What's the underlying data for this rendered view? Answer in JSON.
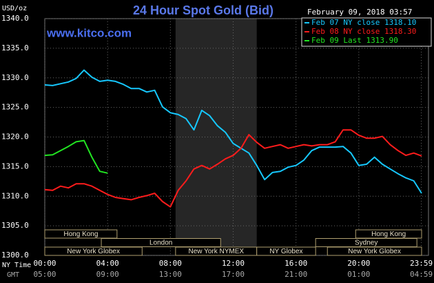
{
  "chart_data": {
    "type": "line",
    "title": "24 Hour Spot Gold (Bid)",
    "subtitle": "February 09, 2018 03:57",
    "y_label": "USD/oz",
    "watermark": "www.kitco.com",
    "x_axis_labels": [
      "NY Time",
      "GMT"
    ],
    "x": [
      0,
      0.5,
      1,
      1.5,
      2,
      2.5,
      3,
      3.5,
      4,
      4.5,
      5,
      5.5,
      6,
      6.5,
      7,
      7.5,
      8,
      8.5,
      9,
      9.5,
      10,
      10.5,
      11,
      11.5,
      12,
      12.5,
      13,
      13.5,
      14,
      14.5,
      15,
      15.5,
      16,
      16.5,
      17,
      17.5,
      18,
      18.5,
      19,
      19.5,
      20,
      20.5,
      21,
      21.5,
      22,
      22.5,
      23,
      23.5,
      24
    ],
    "series": [
      {
        "name": "Feb 07 NY close 1318.10",
        "color": "#16c8ff",
        "values": [
          1328.8,
          1328.7,
          1329.0,
          1329.3,
          1329.9,
          1331.3,
          1330.1,
          1329.4,
          1329.6,
          1329.4,
          1328.9,
          1328.2,
          1328.2,
          1327.6,
          1327.9,
          1325.1,
          1324.1,
          1323.8,
          1323.1,
          1321.2,
          1324.5,
          1323.6,
          1321.9,
          1320.8,
          1318.9,
          1318.1,
          1317.3,
          1315.2,
          1312.8,
          1314.0,
          1314.2,
          1314.9,
          1315.2,
          1316.1,
          1317.7,
          1318.3,
          1318.3,
          1318.3,
          1318.4,
          1317.3,
          1315.2,
          1315.4,
          1316.6,
          1315.4,
          1314.6,
          1313.8,
          1313.1,
          1312.6,
          1310.5
        ]
      },
      {
        "name": "Feb 08 NY close 1318.30",
        "color": "#ff1c1c",
        "values": [
          1311.1,
          1311.0,
          1311.7,
          1311.4,
          1312.1,
          1312.1,
          1311.7,
          1311.0,
          1310.3,
          1309.8,
          1309.6,
          1309.4,
          1309.8,
          1310.1,
          1310.5,
          1309.1,
          1308.2,
          1311.0,
          1312.6,
          1314.6,
          1315.2,
          1314.6,
          1315.4,
          1316.3,
          1316.9,
          1318.1,
          1320.4,
          1319.1,
          1318.1,
          1318.4,
          1318.7,
          1318.1,
          1318.4,
          1318.7,
          1318.5,
          1318.7,
          1318.7,
          1319.2,
          1321.2,
          1321.2,
          1320.3,
          1319.8,
          1319.8,
          1320.1,
          1318.7,
          1317.7,
          1316.9,
          1317.3,
          1316.8
        ]
      },
      {
        "name": "Feb 09 Last 1313.90",
        "color": "#22e622",
        "values": [
          1316.9,
          1317.0,
          1317.7,
          1318.4,
          1319.2,
          1319.4,
          1316.6,
          1314.2,
          1313.9,
          null,
          null,
          null,
          null,
          null,
          null,
          null,
          null,
          null,
          null,
          null,
          null,
          null,
          null,
          null,
          null,
          null,
          null,
          null,
          null,
          null,
          null,
          null,
          null,
          null,
          null,
          null,
          null,
          null,
          null,
          null,
          null,
          null,
          null,
          null,
          null,
          null,
          null,
          null,
          null
        ]
      }
    ],
    "xlim": [
      0,
      24
    ],
    "xticks": [
      {
        "value": 0,
        "label": "00:00"
      },
      {
        "value": 4,
        "label": "04:00"
      },
      {
        "value": 8,
        "label": "08:00"
      },
      {
        "value": 12,
        "label": "12:00"
      },
      {
        "value": 16,
        "label": "16:00"
      },
      {
        "value": 20,
        "label": "20:00"
      },
      {
        "value": 23.98,
        "label": "23:59"
      }
    ],
    "gmt_labels": [
      "05:00",
      "09:00",
      "13:00",
      "17:00",
      "21:00",
      "01:00",
      "04:59"
    ],
    "ylim": [
      1300,
      1340
    ],
    "yticks": [
      {
        "value": 1300,
        "label": "1300.0"
      },
      {
        "value": 1305,
        "label": "1305.0"
      },
      {
        "value": 1310,
        "label": "1310.0"
      },
      {
        "value": 1315,
        "label": "1315.0"
      },
      {
        "value": 1320,
        "label": "1320.0"
      },
      {
        "value": 1325,
        "label": "1325.0"
      },
      {
        "value": 1330,
        "label": "1330.0"
      },
      {
        "value": 1335,
        "label": "1335.0"
      },
      {
        "value": 1340,
        "label": "1340.0"
      }
    ],
    "grid": true,
    "legend": "top-right",
    "shaded_xrange": [
      8.33,
      13.5
    ],
    "sessions": [
      {
        "label": "Hong Kong",
        "start": 0,
        "end": 4.6,
        "row": 0
      },
      {
        "label": "Hong Kong",
        "start": 19.8,
        "end": 24,
        "row": 0
      },
      {
        "label": "London",
        "start": 3.6,
        "end": 11.2,
        "row": 1
      },
      {
        "label": "Sydney",
        "start": 17.25,
        "end": 23.7,
        "row": 1
      },
      {
        "label": "New York Globex",
        "start": 0,
        "end": 6.2,
        "row": 2
      },
      {
        "label": "New York NYMEX",
        "start": 8.33,
        "end": 13.5,
        "row": 2
      },
      {
        "label": "NY Globex",
        "start": 13.5,
        "end": 17.25,
        "row": 2
      },
      {
        "label": "New York Globex",
        "start": 18,
        "end": 24,
        "row": 2
      }
    ]
  }
}
